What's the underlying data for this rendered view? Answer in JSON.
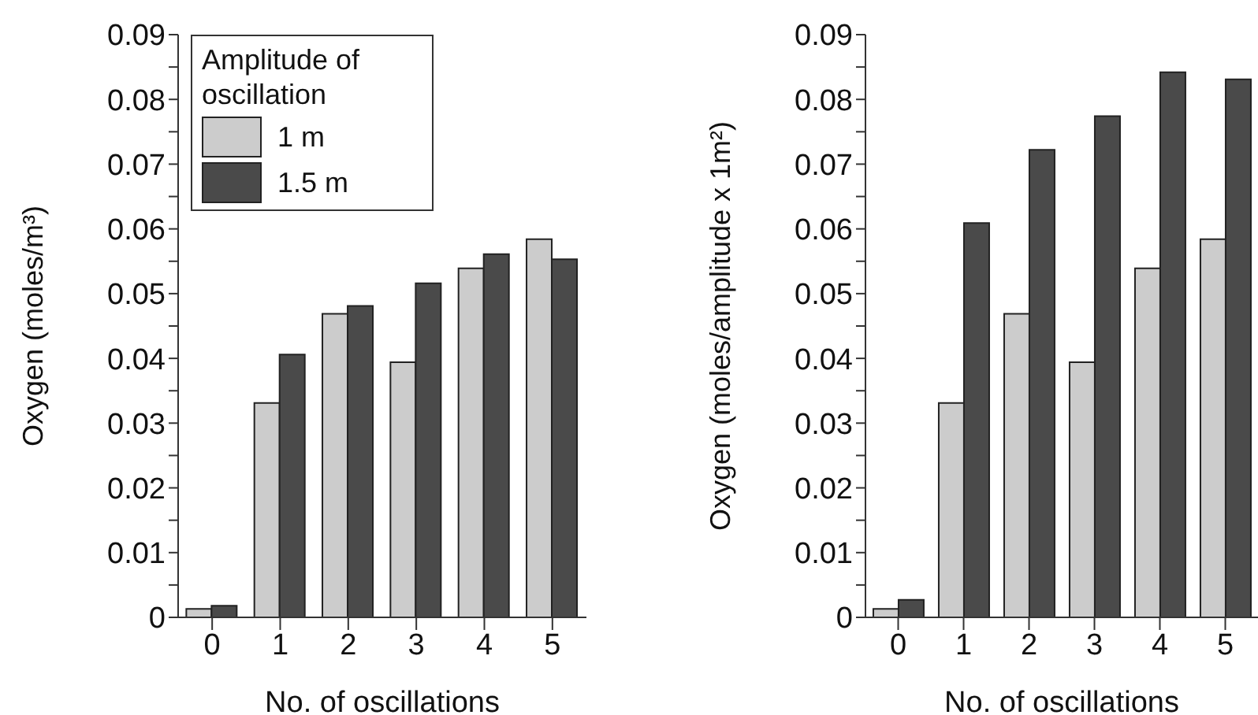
{
  "chart_data": [
    {
      "type": "bar",
      "xlabel": "No. of oscillations",
      "ylabel": "Oxygen (moles/m³)",
      "legend_title": "Amplitude of oscillation",
      "legend": "top left",
      "categories": [
        "0",
        "1",
        "2",
        "3",
        "4",
        "5"
      ],
      "series": [
        {
          "name": "1 m",
          "color": "#cccccc",
          "values": [
            0.0013,
            0.0331,
            0.0469,
            0.0394,
            0.0539,
            0.0584
          ]
        },
        {
          "name": "1.5 m",
          "color": "#4a4a4a",
          "values": [
            0.0018,
            0.0406,
            0.0481,
            0.0516,
            0.0561,
            0.0553
          ]
        }
      ],
      "ylim": [
        0,
        0.09
      ],
      "yticks": [
        0,
        {
          "value": 0.005,
          "label": null
        },
        0.01,
        {
          "value": 0.015,
          "label": null
        },
        0.02,
        {
          "value": 0.025,
          "label": null
        },
        0.03,
        {
          "value": 0.035,
          "label": null
        },
        0.04,
        {
          "value": 0.045,
          "label": null
        },
        0.05,
        {
          "value": 0.055,
          "label": null
        },
        0.06,
        {
          "value": 0.065,
          "label": null
        },
        0.07,
        {
          "value": 0.075,
          "label": null
        },
        0.08,
        {
          "value": 0.085,
          "label": null
        },
        0.09
      ],
      "grid": false
    },
    {
      "type": "bar",
      "xlabel": "No. of oscillations",
      "ylabel": "Oxygen (moles/amplitude x 1m²)",
      "categories": [
        "0",
        "1",
        "2",
        "3",
        "4",
        "5"
      ],
      "series": [
        {
          "color": "#cccccc",
          "values": [
            0.0013,
            0.0331,
            0.0469,
            0.0394,
            0.0539,
            0.0584
          ]
        },
        {
          "color": "#4a4a4a",
          "values": [
            0.0027,
            0.0609,
            0.0722,
            0.0774,
            0.0842,
            0.0831
          ]
        }
      ],
      "ylim": [
        0,
        0.09
      ],
      "yticks": [
        0,
        {
          "value": 0.005,
          "label": null
        },
        0.01,
        {
          "value": 0.015,
          "label": null
        },
        0.02,
        {
          "value": 0.025,
          "label": null
        },
        0.03,
        {
          "value": 0.035,
          "label": null
        },
        0.04,
        {
          "value": 0.045,
          "label": null
        },
        0.05,
        {
          "value": 0.055,
          "label": null
        },
        0.06,
        {
          "value": 0.065,
          "label": null
        },
        0.07,
        {
          "value": 0.075,
          "label": null
        },
        0.08,
        {
          "value": 0.085,
          "label": null
        },
        0.09
      ],
      "grid": false
    }
  ]
}
